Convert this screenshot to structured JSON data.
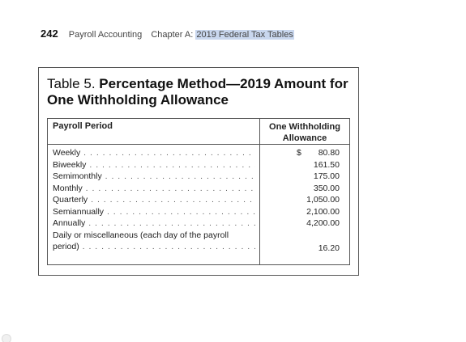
{
  "header": {
    "page_number": "242",
    "book_title": "Payroll Accounting",
    "chapter_prefix": "Chapter A:",
    "chapter_selected": "2019 Federal Tax Tables"
  },
  "table": {
    "title_prefix": "Table 5.",
    "title_bold": "Percentage Method—2019 Amount for One Withholding Allowance",
    "col_period": "Payroll Period",
    "col_allowance": "One Withholding Allowance",
    "currency_symbol": "$",
    "rows": [
      {
        "period": "Weekly",
        "amount": "80.80"
      },
      {
        "period": "Biweekly",
        "amount": "161.50"
      },
      {
        "period": "Semimonthly",
        "amount": "175.00"
      },
      {
        "period": "Monthly",
        "amount": "350.00"
      },
      {
        "period": "Quarterly",
        "amount": "1,050.00"
      },
      {
        "period": "Semiannually",
        "amount": "2,100.00"
      },
      {
        "period": "Annually",
        "amount": "4,200.00"
      }
    ],
    "daily_row": {
      "line1": "Daily or miscellaneous (each day of the payroll",
      "line2": "period)",
      "amount": "16.20"
    }
  }
}
